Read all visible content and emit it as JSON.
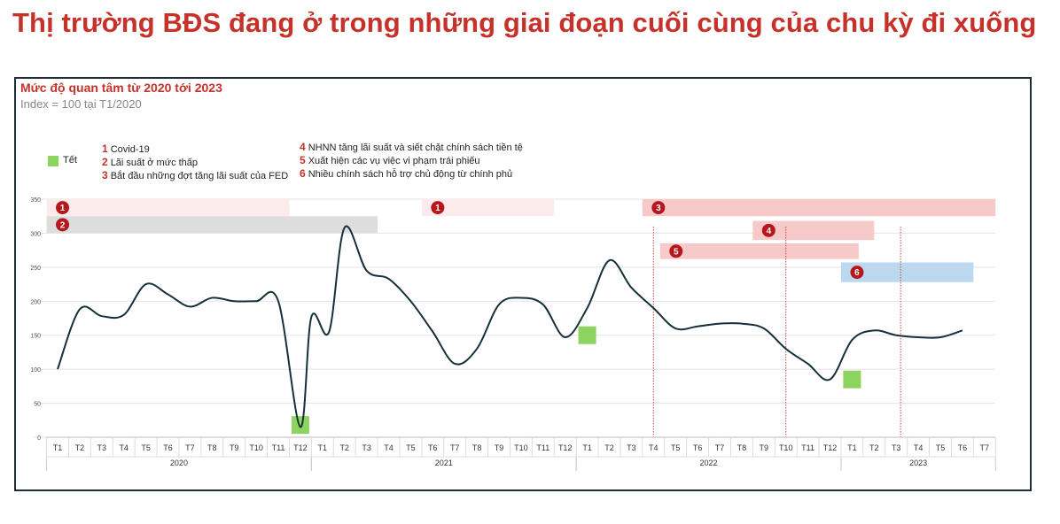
{
  "headline": "Thị trường BĐS đang ở trong những giai đoạn cuối cùng của chu kỳ đi xuống",
  "chart_data": {
    "type": "line",
    "title": "Mức độ quan tâm từ 2020 tới 2023",
    "subtitle": "Index = 100 tại T1/2020",
    "ylim": [
      0,
      350
    ],
    "yticks": [
      0,
      50,
      100,
      150,
      200,
      250,
      300,
      350
    ],
    "grid": true,
    "line_color": "#15303a",
    "months": [
      "T1",
      "T2",
      "T3",
      "T4",
      "T5",
      "T6",
      "T7",
      "T8",
      "T9",
      "T10",
      "T11",
      "T12",
      "T1",
      "T2",
      "T3",
      "T4",
      "T5",
      "T6",
      "T7",
      "T8",
      "T9",
      "T10",
      "T11",
      "T12",
      "T1",
      "T2",
      "T3",
      "T4",
      "T5",
      "T6",
      "T7",
      "T8",
      "T9",
      "T10",
      "T11",
      "T12",
      "T1",
      "T2",
      "T3",
      "T4",
      "T5",
      "T6",
      "T7"
    ],
    "years": [
      {
        "label": "2020",
        "start": 0,
        "end": 11
      },
      {
        "label": "2021",
        "start": 12,
        "end": 23
      },
      {
        "label": "2022",
        "start": 24,
        "end": 35
      },
      {
        "label": "2023",
        "start": 36,
        "end": 42
      }
    ],
    "series": [
      {
        "values": [
          [
            0,
            100
          ],
          [
            1,
            188
          ],
          [
            2,
            178
          ],
          [
            3,
            180
          ],
          [
            4,
            225
          ],
          [
            5,
            210
          ],
          [
            6,
            192
          ],
          [
            7,
            205
          ],
          [
            8,
            200
          ],
          [
            9,
            200
          ],
          [
            10,
            200
          ],
          [
            11,
            15
          ],
          [
            11.5,
            177
          ],
          [
            12.3,
            155
          ],
          [
            13,
            308
          ],
          [
            14,
            245
          ],
          [
            15,
            233
          ],
          [
            16,
            200
          ],
          [
            17,
            155
          ],
          [
            18,
            108
          ],
          [
            19,
            130
          ],
          [
            20,
            195
          ],
          [
            21,
            205
          ],
          [
            22,
            195
          ],
          [
            23,
            147
          ],
          [
            24,
            190
          ],
          [
            25,
            260
          ],
          [
            26,
            220
          ],
          [
            27,
            190
          ],
          [
            28,
            160
          ],
          [
            29,
            163
          ],
          [
            30,
            167
          ],
          [
            31,
            167
          ],
          [
            32,
            160
          ],
          [
            33,
            130
          ],
          [
            34,
            108
          ],
          [
            35,
            85
          ],
          [
            36,
            143
          ],
          [
            37,
            157
          ],
          [
            38,
            150
          ],
          [
            39,
            147
          ],
          [
            40,
            147
          ],
          [
            41,
            157
          ]
        ]
      }
    ],
    "tet_markers": [
      {
        "x": 11,
        "y": 18
      },
      {
        "x": 24,
        "y": 150
      },
      {
        "x": 36,
        "y": 85
      }
    ],
    "vertical_lines": [
      27,
      33,
      38.2
    ],
    "annotations": [
      {
        "num": "1",
        "x_start": -0.5,
        "x_end": 10.5,
        "y_low": 325,
        "y_high": 350,
        "color": "#fdeaea"
      },
      {
        "num": "2",
        "x_start": -0.5,
        "x_end": 14.5,
        "y_low": 300,
        "y_high": 325,
        "color": "#dddddd"
      },
      {
        "num": "1",
        "x_start": 16.5,
        "x_end": 22.5,
        "y_low": 325,
        "y_high": 350,
        "color": "#fdeaea"
      },
      {
        "num": "3",
        "x_start": 26.5,
        "x_end": 42.5,
        "y_low": 325,
        "y_high": 350,
        "color": "#f7c9c9"
      },
      {
        "num": "4",
        "x_start": 31.5,
        "x_end": 37,
        "y_low": 290,
        "y_high": 318,
        "color": "#f7c9c9"
      },
      {
        "num": "5",
        "x_start": 27.3,
        "x_end": 36.3,
        "y_low": 262,
        "y_high": 285,
        "color": "#f7c9c9"
      },
      {
        "num": "6",
        "x_start": 35.5,
        "x_end": 41.5,
        "y_low": 228,
        "y_high": 257,
        "color": "#bcd8ee"
      }
    ],
    "badge_color": "#b5171d",
    "tet_color": "#8dd35f",
    "legend": {
      "tet": "Tết",
      "events": [
        {
          "num": "1",
          "text": "Covid-19"
        },
        {
          "num": "2",
          "text": "Lãi suất ở mức thấp"
        },
        {
          "num": "3",
          "text": "Bắt đầu những đợt tăng lãi suất của FED"
        },
        {
          "num": "4",
          "text": "NHNN tăng lãi suất và siết chặt chính sách tiền tệ"
        },
        {
          "num": "5",
          "text": "Xuất hiện các vụ việc vi phạm trái phiếu"
        },
        {
          "num": "6",
          "text": "Nhiều chính sách hỗ trợ chủ động từ chính phủ"
        }
      ]
    }
  }
}
